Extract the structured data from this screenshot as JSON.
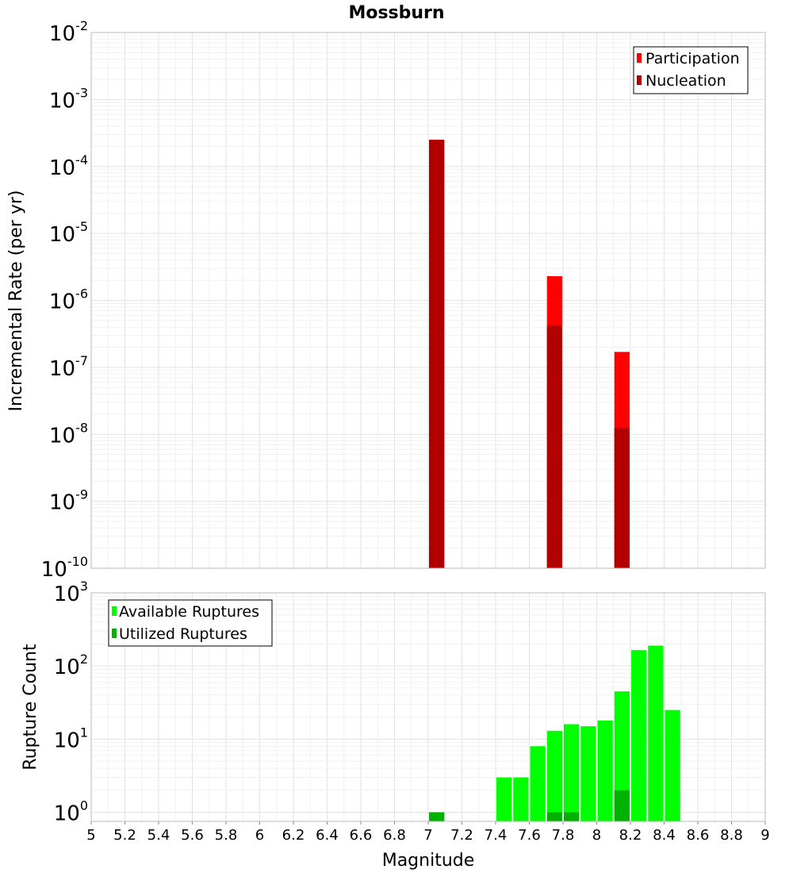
{
  "title": "Mossburn",
  "chart_data": [
    {
      "type": "bar",
      "xlabel": "",
      "ylabel": "Incremental Rate (per yr)",
      "yscale": "log",
      "ylim_exponents": [
        -10,
        -2
      ],
      "ytick_exponents": [
        -2,
        -3,
        -4,
        -5,
        -6,
        -7,
        -8,
        -9,
        -10
      ],
      "xlim": [
        5,
        9
      ],
      "bin_width": 0.1,
      "grid": true,
      "legend_position": "top-right",
      "overlay": true,
      "series": [
        {
          "name": "Participation",
          "color": "#ff0000",
          "bins": [
            {
              "x": 7.05,
              "y": 0.00025
            },
            {
              "x": 7.75,
              "y": 2.3e-06
            },
            {
              "x": 8.15,
              "y": 1.7e-07
            }
          ]
        },
        {
          "name": "Nucleation",
          "color": "#b20000",
          "bins": [
            {
              "x": 7.05,
              "y": 0.00025
            },
            {
              "x": 7.75,
              "y": 4.2e-07
            },
            {
              "x": 8.15,
              "y": 1.25e-08
            }
          ]
        }
      ]
    },
    {
      "type": "bar",
      "xlabel": "Magnitude",
      "ylabel": "Rupture Count",
      "yscale": "log",
      "ylim": [
        0.75,
        1000
      ],
      "ytick_exponents": [
        3,
        2,
        1,
        0
      ],
      "xlim": [
        5,
        9
      ],
      "xticks": [
        "5",
        "5.2",
        "5.4",
        "5.6",
        "5.8",
        "6",
        "6.2",
        "6.4",
        "6.6",
        "6.8",
        "7",
        "7.2",
        "7.4",
        "7.6",
        "7.8",
        "8",
        "8.2",
        "8.4",
        "8.6",
        "8.8",
        "9"
      ],
      "bin_width": 0.1,
      "grid": true,
      "legend_position": "top-left",
      "overlay": true,
      "series": [
        {
          "name": "Available Ruptures",
          "color": "#00ff00",
          "bins": [
            {
              "x": 7.05,
              "y": 1
            },
            {
              "x": 7.45,
              "y": 3
            },
            {
              "x": 7.55,
              "y": 3
            },
            {
              "x": 7.65,
              "y": 8
            },
            {
              "x": 7.75,
              "y": 13
            },
            {
              "x": 7.85,
              "y": 16
            },
            {
              "x": 7.95,
              "y": 15
            },
            {
              "x": 8.05,
              "y": 18
            },
            {
              "x": 8.15,
              "y": 45
            },
            {
              "x": 8.25,
              "y": 165
            },
            {
              "x": 8.35,
              "y": 190
            },
            {
              "x": 8.45,
              "y": 25
            }
          ]
        },
        {
          "name": "Utilized Ruptures",
          "color": "#00b200",
          "bins": [
            {
              "x": 7.05,
              "y": 1
            },
            {
              "x": 7.75,
              "y": 1
            },
            {
              "x": 7.85,
              "y": 1
            },
            {
              "x": 8.15,
              "y": 2
            }
          ]
        }
      ]
    }
  ]
}
